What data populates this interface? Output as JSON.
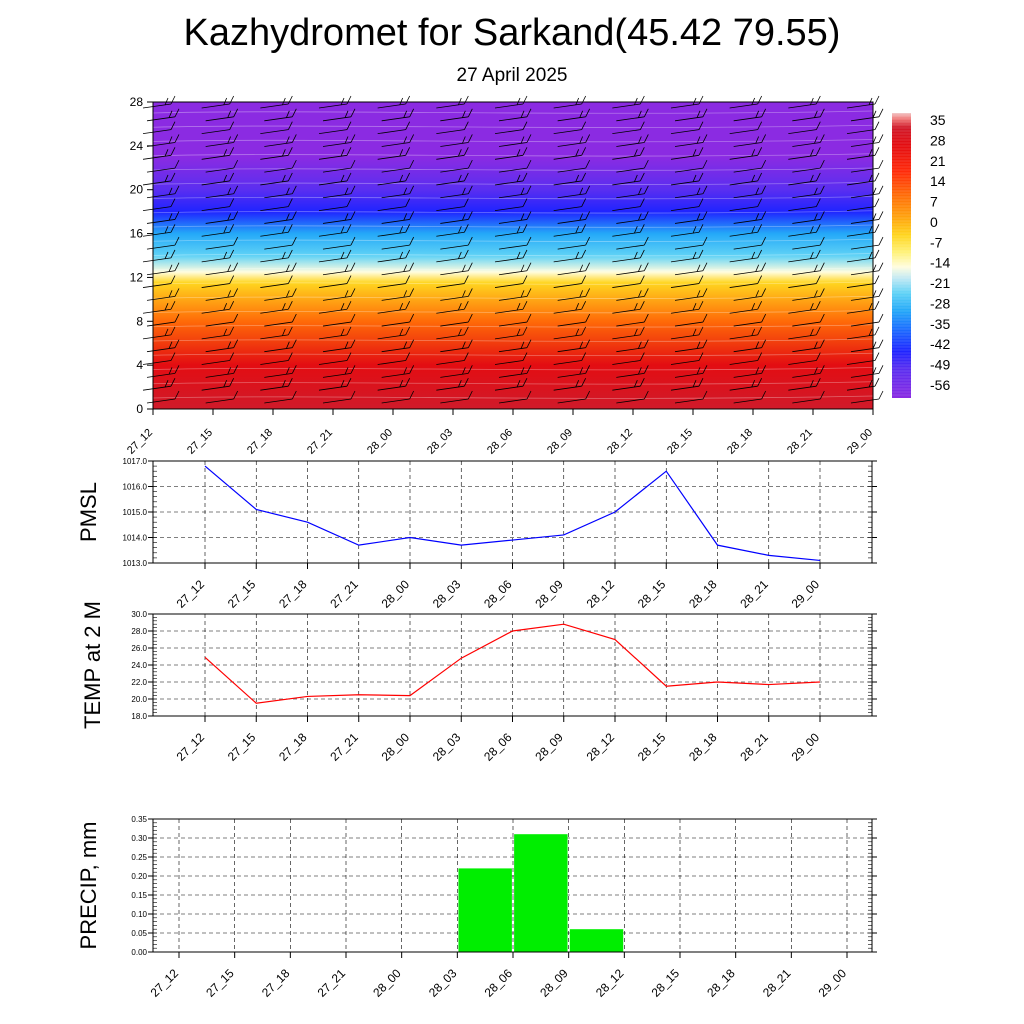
{
  "header": {
    "title": "Kazhydromet for Sarkand(45.42 79.55)",
    "subtitle": "27 April 2025"
  },
  "chart_data": [
    {
      "id": "vertical",
      "type": "heatmap",
      "x_ticks": [
        "27_12",
        "27_15",
        "27_18",
        "27_21",
        "28_00",
        "28_03",
        "28_06",
        "28_09",
        "28_12",
        "28_15",
        "28_18",
        "28_21",
        "29_00"
      ],
      "y_ticks": [
        "0",
        "4",
        "8",
        "12",
        "16",
        "20",
        "24",
        "28"
      ],
      "ylim": [
        0,
        28
      ],
      "color_scale": {
        "labels": [
          "35",
          "28",
          "21",
          "14",
          "7",
          "0",
          "-7",
          "-14",
          "-21",
          "-28",
          "-35",
          "-42",
          "-49",
          "-56"
        ],
        "range": [
          -60,
          38
        ],
        "stops": [
          {
            "value": -60,
            "color": "#8b2be2"
          },
          {
            "value": -50,
            "color": "#5a2ef0"
          },
          {
            "value": -44,
            "color": "#1f24ff"
          },
          {
            "value": -37,
            "color": "#1b67ff"
          },
          {
            "value": -30,
            "color": "#24a8f8"
          },
          {
            "value": -24,
            "color": "#5fd2f6"
          },
          {
            "value": -19,
            "color": "#bfe8f4"
          },
          {
            "value": -15,
            "color": "#fffde0"
          },
          {
            "value": -10,
            "color": "#fff27a"
          },
          {
            "value": -4,
            "color": "#ffd51f"
          },
          {
            "value": 2,
            "color": "#ffa40d"
          },
          {
            "value": 10,
            "color": "#ff6a08"
          },
          {
            "value": 18,
            "color": "#ff2a0a"
          },
          {
            "value": 27,
            "color": "#e30d12"
          },
          {
            "value": 33,
            "color": "#d01a2a"
          },
          {
            "value": 36,
            "color": "#f07a7a"
          },
          {
            "value": 38,
            "color": "#f2c6c6"
          }
        ]
      },
      "temperature_profile": [
        {
          "height": 0,
          "temp": 30
        },
        {
          "height": 4,
          "temp": 24
        },
        {
          "height": 8,
          "temp": 10
        },
        {
          "height": 11.5,
          "temp": -4
        },
        {
          "height": 12.5,
          "temp": -15
        },
        {
          "height": 14,
          "temp": -24
        },
        {
          "height": 16,
          "temp": -33
        },
        {
          "height": 18,
          "temp": -45
        },
        {
          "height": 20,
          "temp": -52
        },
        {
          "height": 23,
          "temp": -56
        },
        {
          "height": 28,
          "temp": -57
        }
      ]
    },
    {
      "id": "pmsl",
      "type": "line",
      "ylabel": "PMSL",
      "categories": [
        "27_12",
        "27_15",
        "27_18",
        "27_21",
        "28_00",
        "28_03",
        "28_06",
        "28_09",
        "28_12",
        "28_15",
        "28_18",
        "28_21",
        "29_00"
      ],
      "values": [
        1016.8,
        1015.1,
        1014.6,
        1013.7,
        1014.0,
        1013.7,
        1013.9,
        1014.1,
        1015.0,
        1016.6,
        1013.7,
        1013.3,
        1013.1
      ],
      "ylim": [
        1013.0,
        1017.0
      ],
      "y_ticks": [
        "1013.0",
        "1014.0",
        "1015.0",
        "1016.0",
        "1017.0"
      ],
      "color": "#0000ff",
      "grid": true
    },
    {
      "id": "temp",
      "type": "line",
      "ylabel": "TEMP at 2 M",
      "categories": [
        "27_12",
        "27_15",
        "27_18",
        "27_21",
        "28_00",
        "28_03",
        "28_06",
        "28_09",
        "28_12",
        "28_15",
        "28_18",
        "28_21",
        "29_00"
      ],
      "values": [
        24.9,
        19.5,
        20.3,
        20.5,
        20.4,
        24.8,
        28.0,
        28.8,
        27.0,
        21.5,
        22.0,
        21.7,
        22.0
      ],
      "ylim": [
        18.0,
        30.0
      ],
      "y_ticks": [
        "18.0",
        "20.0",
        "22.0",
        "24.0",
        "26.0",
        "28.0",
        "30.0"
      ],
      "color": "#ff0000",
      "grid": true
    },
    {
      "id": "precip",
      "type": "bar",
      "ylabel": "PRECIP, mm",
      "categories": [
        "27_12",
        "27_15",
        "27_18",
        "27_21",
        "28_00",
        "28_03",
        "28_06",
        "28_09",
        "28_12",
        "28_15",
        "28_18",
        "28_21",
        "29_00"
      ],
      "values": [
        0,
        0,
        0,
        0,
        0,
        0,
        0.22,
        0.31,
        0.06,
        0,
        0,
        0,
        0
      ],
      "ylim": [
        0,
        0.35
      ],
      "y_ticks": [
        "0.00",
        "0.05",
        "0.10",
        "0.15",
        "0.20",
        "0.25",
        "0.30",
        "0.35"
      ],
      "color": "#00ee00",
      "grid": true
    }
  ]
}
